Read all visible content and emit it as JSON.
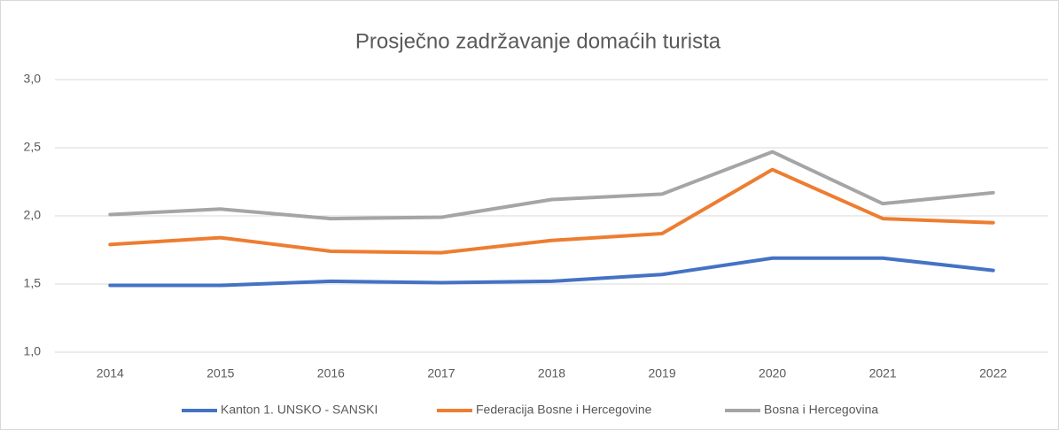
{
  "chart_data": {
    "type": "line",
    "title": "Prosječno zadržavanje domaćih turista",
    "categories": [
      "2014",
      "2015",
      "2016",
      "2017",
      "2018",
      "2019",
      "2020",
      "2021",
      "2022"
    ],
    "series": [
      {
        "name": "Kanton 1. UNSKO - SANSKI",
        "color": "#4472c4",
        "values": [
          1.49,
          1.49,
          1.52,
          1.51,
          1.52,
          1.57,
          1.69,
          1.69,
          1.6
        ]
      },
      {
        "name": "Federacija Bosne i Hercegovine",
        "color": "#ed7d31",
        "values": [
          1.79,
          1.84,
          1.74,
          1.73,
          1.82,
          1.87,
          2.34,
          1.98,
          1.95
        ]
      },
      {
        "name": "Bosna i Hercegovina",
        "color": "#a5a5a5",
        "values": [
          2.01,
          2.05,
          1.98,
          1.99,
          2.12,
          2.16,
          2.47,
          2.09,
          2.17
        ]
      }
    ],
    "ylim": [
      1,
      3
    ],
    "yticks": [
      {
        "value": 1,
        "label": "1,0"
      },
      {
        "value": 1.5,
        "label": "1,5"
      },
      {
        "value": 2,
        "label": "2,0"
      },
      {
        "value": 2.5,
        "label": "2,5"
      },
      {
        "value": 3,
        "label": "3,0"
      }
    ],
    "grid": true,
    "legend": "bottom"
  }
}
